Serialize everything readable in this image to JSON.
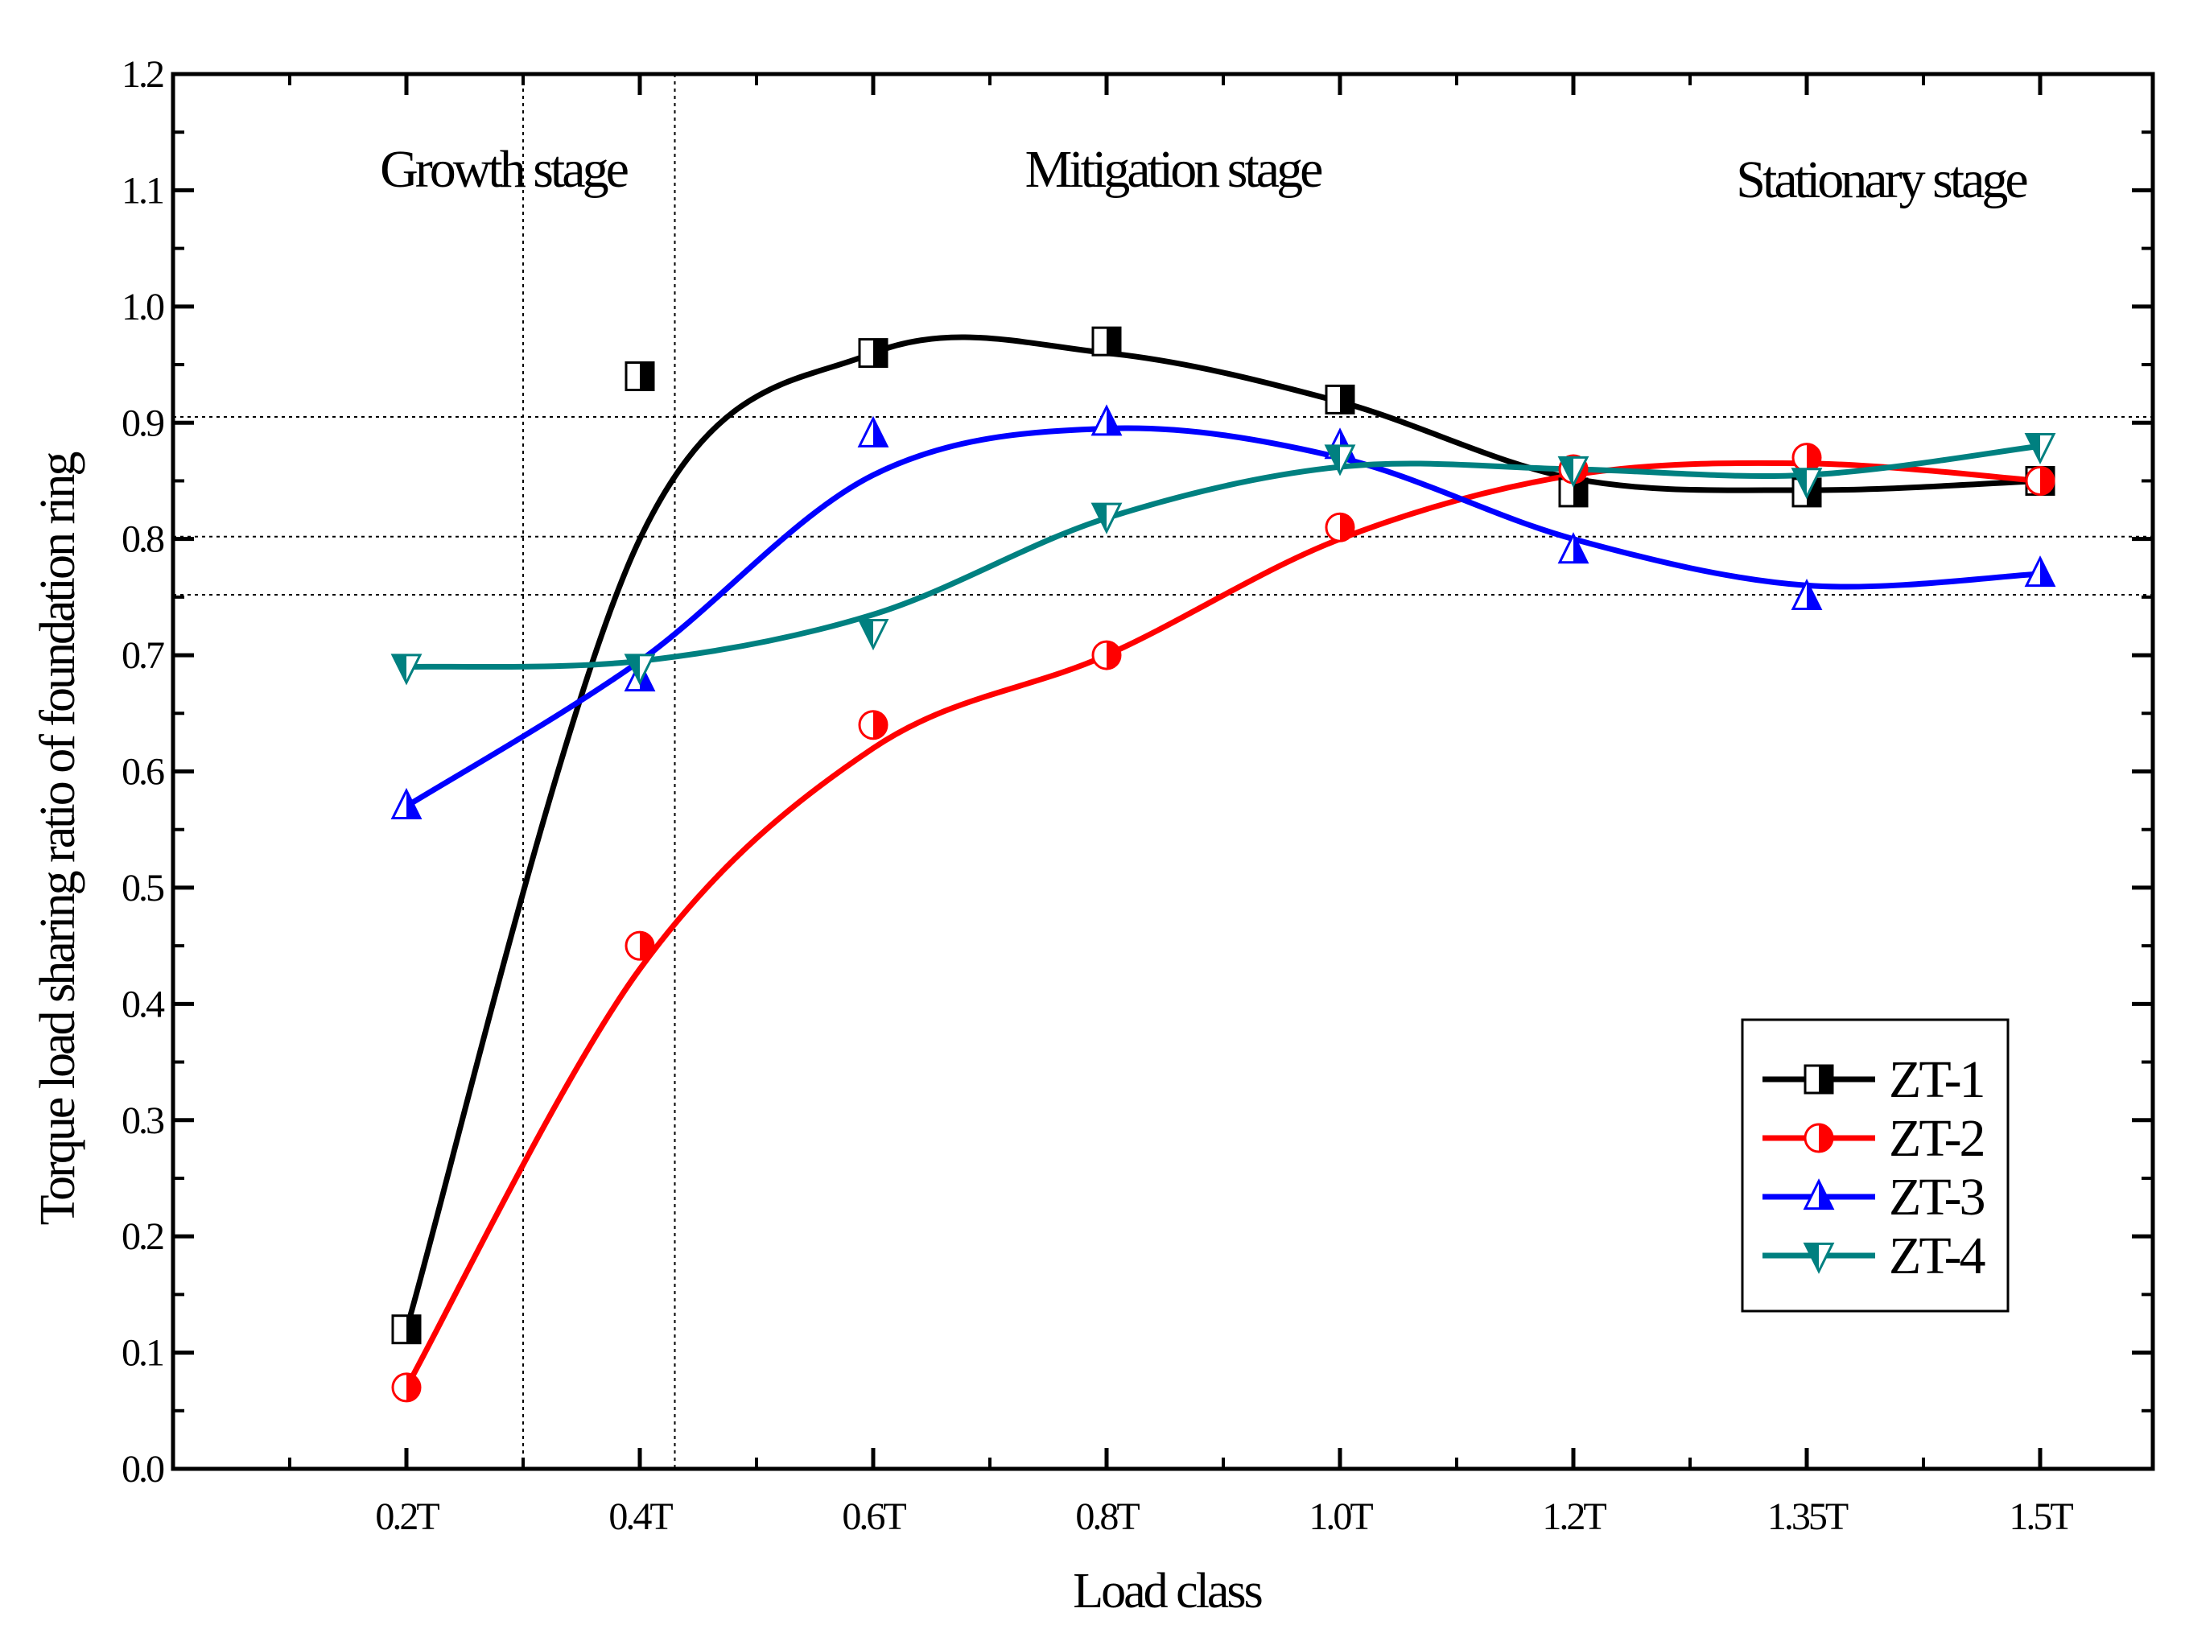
{
  "chart_data": {
    "type": "line",
    "title": "",
    "xlabel": "Load class",
    "ylabel": "Torque load sharing ratio of foundation ring",
    "categories": [
      "0.2T",
      "0.4T",
      "0.6T",
      "0.8T",
      "1.0T",
      "1.2T",
      "1.35T",
      "1.5T"
    ],
    "ylim": [
      0.0,
      1.2
    ],
    "yticks": [
      "0.0",
      "0.1",
      "0.2",
      "0.3",
      "0.4",
      "0.5",
      "0.6",
      "0.7",
      "0.8",
      "0.9",
      "1.0",
      "1.1",
      "1.2"
    ],
    "stages": [
      "Growth stage",
      "Mitigation stage",
      "Stationary stage"
    ],
    "stage_boundaries": [
      0.5,
      1.15
    ],
    "reference_lines": [
      0.905,
      0.802,
      0.752
    ],
    "legend_position": "bottom-right",
    "series": [
      {
        "name": "ZT-1",
        "color": "#000000",
        "marker": "half-square",
        "values": [
          0.12,
          0.94,
          0.96,
          0.97,
          0.92,
          0.84,
          0.84,
          0.85
        ],
        "curve": [
          0.12,
          0.8,
          0.96,
          0.96,
          0.918,
          0.852,
          0.842,
          0.85
        ]
      },
      {
        "name": "ZT-2",
        "color": "#ff0000",
        "marker": "half-circle",
        "values": [
          0.07,
          0.45,
          0.64,
          0.7,
          0.81,
          0.86,
          0.87,
          0.85
        ],
        "curve": [
          0.07,
          0.43,
          0.62,
          0.7,
          0.8,
          0.855,
          0.865,
          0.85
        ]
      },
      {
        "name": "ZT-3",
        "color": "#0000ff",
        "marker": "half-triangle-up",
        "values": [
          0.57,
          0.68,
          0.89,
          0.9,
          0.88,
          0.79,
          0.75,
          0.77
        ],
        "curve": [
          0.57,
          0.695,
          0.855,
          0.895,
          0.87,
          0.8,
          0.76,
          0.77
        ]
      },
      {
        "name": "ZT-4",
        "color": "#008080",
        "marker": "half-triangle-down",
        "values": [
          0.69,
          0.69,
          0.72,
          0.82,
          0.87,
          0.86,
          0.85,
          0.88
        ],
        "curve": [
          0.69,
          0.695,
          0.735,
          0.818,
          0.862,
          0.86,
          0.855,
          0.88
        ]
      }
    ]
  }
}
